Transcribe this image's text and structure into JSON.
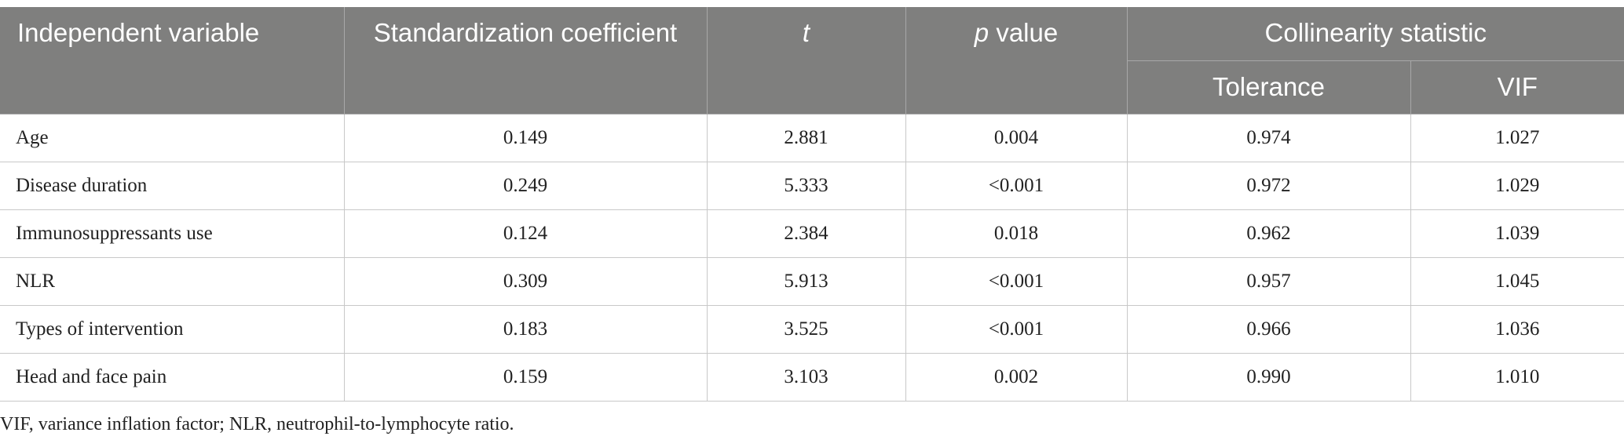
{
  "table": {
    "header": {
      "independent_variable": "Independent variable",
      "standardization_coefficient": "Standardization coefficient",
      "t": "t",
      "p_value": [
        "p",
        "value"
      ],
      "collinearity_statistic": "Collinearity statistic",
      "tolerance": "Tolerance",
      "vif": "VIF"
    },
    "rows": [
      [
        "Age",
        "0.149",
        "2.881",
        "0.004",
        "0.974",
        "1.027"
      ],
      [
        "Disease duration",
        "0.249",
        "5.333",
        "<0.001",
        "0.972",
        "1.029"
      ],
      [
        "Immunosuppressants use",
        "0.124",
        "2.384",
        "0.018",
        "0.962",
        "1.039"
      ],
      [
        "NLR",
        "0.309",
        "5.913",
        "<0.001",
        "0.957",
        "1.045"
      ],
      [
        "Types of intervention",
        "0.183",
        "3.525",
        "<0.001",
        "0.966",
        "1.036"
      ],
      [
        "Head and face pain",
        "0.159",
        "3.103",
        "0.002",
        "0.990",
        "1.010"
      ]
    ],
    "footnote": "VIF, variance inflation factor; NLR, neutrophil-to-lymphocyte ratio."
  }
}
